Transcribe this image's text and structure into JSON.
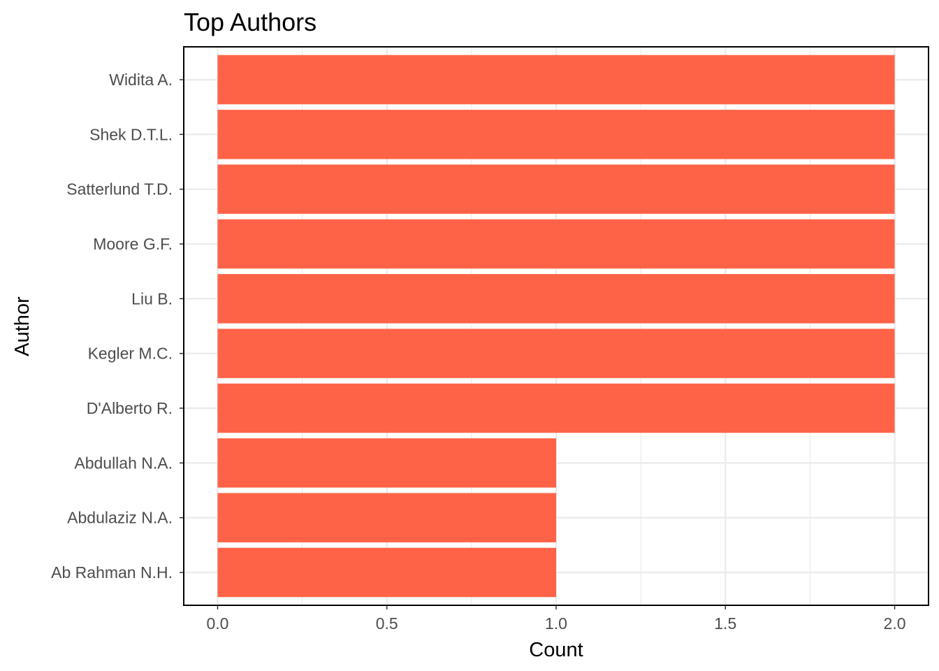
{
  "chart_data": {
    "type": "bar",
    "orientation": "horizontal",
    "title": "Top Authors",
    "xlabel": "Count",
    "ylabel": "Author",
    "categories": [
      "Widita A.",
      "Shek D.T.L.",
      "Satterlund T.D.",
      "Moore G.F.",
      "Liu B.",
      "Kegler M.C.",
      "D'Alberto R.",
      "Abdullah N.A.",
      "Abdulaziz N.A.",
      "Ab Rahman N.H."
    ],
    "values": [
      2,
      2,
      2,
      2,
      2,
      2,
      2,
      1,
      1,
      1
    ],
    "xlim": [
      0,
      2
    ],
    "x_ticks": [
      0,
      0.5,
      1,
      1.5,
      2
    ],
    "x_tick_labels": [
      "0.0",
      "0.5",
      "1.0",
      "1.5",
      "2.0"
    ],
    "bar_color": "#FF6347",
    "grid": true
  }
}
